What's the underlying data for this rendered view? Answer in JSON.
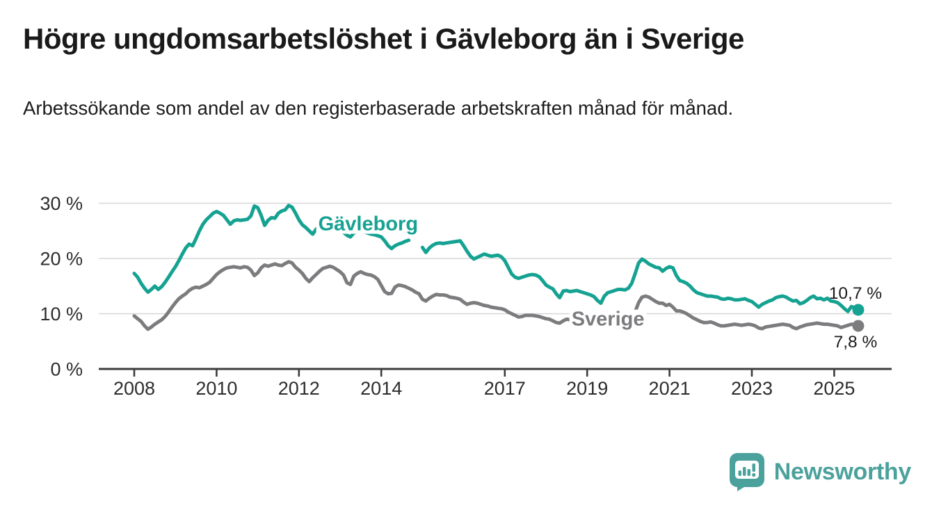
{
  "header": {
    "title": "Högre ungdomsarbetslöshet i Gävleborg än i Sverige",
    "subtitle": "Arbetssökande som andel av den registerbaserade arbetskraften månad för månad."
  },
  "footer": {
    "brand": "Newsworthy",
    "logo_icon": "newsworthy-speech-bubble-bar-chart-icon"
  },
  "chart_data": {
    "type": "line",
    "title": "",
    "xlabel": "",
    "ylabel": "",
    "x_axis": {
      "tick_years": [
        2008,
        2010,
        2012,
        2014,
        2017,
        2019,
        2021,
        2023,
        2025
      ],
      "tick_labels": [
        "2008",
        "2010",
        "2012",
        "2014",
        "2017",
        "2019",
        "2021",
        "2023",
        "2025"
      ],
      "range_years": [
        2007.85,
        2026.4
      ]
    },
    "y_axis": {
      "ticks": [
        0,
        10,
        20,
        30
      ],
      "tick_labels": [
        "0 %",
        "10 %",
        "20 %",
        "30 %"
      ],
      "range": [
        0,
        32.5
      ],
      "grid": true
    },
    "legend_position": "inline-labels",
    "frequency": "monthly",
    "start_year": 2008,
    "series": [
      {
        "name": "Gävleborg",
        "color": "#16a292",
        "end_label": "10,7 %",
        "end_value": 10.7,
        "label_anchor": {
          "x": 2012.47,
          "y": 25.1
        },
        "values": [
          17.3,
          16.6,
          15.5,
          14.6,
          13.9,
          14.4,
          15.0,
          14.4,
          14.9,
          15.7,
          16.6,
          17.6,
          18.5,
          19.6,
          20.8,
          21.9,
          22.6,
          22.3,
          23.6,
          25.0,
          26.2,
          27.0,
          27.6,
          28.2,
          28.5,
          28.2,
          27.8,
          27.0,
          26.2,
          26.8,
          27.0,
          26.9,
          27.0,
          27.1,
          27.7,
          29.5,
          29.2,
          27.8,
          26.0,
          26.9,
          27.4,
          27.3,
          28.2,
          28.6,
          28.8,
          29.6,
          29.3,
          28.2,
          27.0,
          26.1,
          25.6,
          25.0,
          24.4,
          25.3,
          25.9,
          25.7,
          25.5,
          25.6,
          25.4,
          25.2,
          25.0,
          24.7,
          24.2,
          23.9,
          24.6,
          24.9,
          25.0,
          24.8,
          24.6,
          24.4,
          24.3,
          24.1,
          23.9,
          23.2,
          22.3,
          21.8,
          22.3,
          22.6,
          22.8,
          23.1,
          23.3,
          null,
          null,
          null,
          22.0,
          21.1,
          21.9,
          22.4,
          22.7,
          22.8,
          22.7,
          22.8,
          22.9,
          23.0,
          23.1,
          23.2,
          22.3,
          21.3,
          20.4,
          19.9,
          20.2,
          20.5,
          20.8,
          20.6,
          20.4,
          20.5,
          20.6,
          20.3,
          19.6,
          18.4,
          17.2,
          16.6,
          16.4,
          16.6,
          16.8,
          17.0,
          17.1,
          17.0,
          16.7,
          16.0,
          15.2,
          14.8,
          14.5,
          13.6,
          12.9,
          14.1,
          14.2,
          14.0,
          14.1,
          14.2,
          14.0,
          13.8,
          13.6,
          13.4,
          13.1,
          12.4,
          11.9,
          13.2,
          13.8,
          14.0,
          14.2,
          14.4,
          14.4,
          14.3,
          14.6,
          15.5,
          17.3,
          19.2,
          19.9,
          19.5,
          19.0,
          18.7,
          18.4,
          18.3,
          17.7,
          18.2,
          18.5,
          18.3,
          16.9,
          16.0,
          15.8,
          15.5,
          15.0,
          14.3,
          13.8,
          13.6,
          13.4,
          13.2,
          13.2,
          13.1,
          13.0,
          12.7,
          12.6,
          12.8,
          12.7,
          12.5,
          12.5,
          12.6,
          12.7,
          12.4,
          12.2,
          11.7,
          11.2,
          11.7,
          12.0,
          12.3,
          12.5,
          12.9,
          13.1,
          13.2,
          13.0,
          12.6,
          12.3,
          12.4,
          11.8,
          12.0,
          12.4,
          12.9,
          13.2,
          12.7,
          12.8,
          12.5,
          12.8,
          12.3,
          12.2,
          12.0,
          11.5,
          10.9,
          10.4,
          11.3,
          11.1,
          10.7
        ]
      },
      {
        "name": "Sverige",
        "color": "#7c7c7f",
        "end_label": "7,8 %",
        "end_value": 7.8,
        "label_anchor": {
          "x": 2018.62,
          "y": 7.85
        },
        "values": [
          9.6,
          9.1,
          8.6,
          7.8,
          7.2,
          7.6,
          8.1,
          8.5,
          8.9,
          9.5,
          10.3,
          11.2,
          12.0,
          12.7,
          13.2,
          13.6,
          14.2,
          14.6,
          14.8,
          14.7,
          15.0,
          15.3,
          15.7,
          16.4,
          17.1,
          17.6,
          18.0,
          18.3,
          18.4,
          18.5,
          18.4,
          18.3,
          18.5,
          18.4,
          17.9,
          16.9,
          17.4,
          18.3,
          18.8,
          18.6,
          18.8,
          19.0,
          18.8,
          18.7,
          19.1,
          19.4,
          19.2,
          18.4,
          17.9,
          17.3,
          16.4,
          15.8,
          16.5,
          17.1,
          17.7,
          18.2,
          18.4,
          18.6,
          18.4,
          18.0,
          17.6,
          17.0,
          15.6,
          15.3,
          16.8,
          17.3,
          17.6,
          17.3,
          17.1,
          17.0,
          16.7,
          16.2,
          15.1,
          14.0,
          13.6,
          13.7,
          14.8,
          15.2,
          15.1,
          14.9,
          14.6,
          14.3,
          13.9,
          13.6,
          12.6,
          12.3,
          12.8,
          13.2,
          13.5,
          13.4,
          13.4,
          13.3,
          13.0,
          12.9,
          12.8,
          12.6,
          12.1,
          11.7,
          11.9,
          12.0,
          11.9,
          11.7,
          11.5,
          11.4,
          11.2,
          11.1,
          11.0,
          10.9,
          10.7,
          10.3,
          10.0,
          9.7,
          9.4,
          9.5,
          9.7,
          9.7,
          9.7,
          9.6,
          9.5,
          9.3,
          9.1,
          9.0,
          8.7,
          8.4,
          8.3,
          8.7,
          9.0,
          8.9,
          8.8,
          8.7,
          8.6,
          8.5,
          8.4,
          8.1,
          7.9,
          7.7,
          8.1,
          8.4,
          8.5,
          8.5,
          8.5,
          8.5,
          8.6,
          8.7,
          8.9,
          9.3,
          10.4,
          12.0,
          13.0,
          13.2,
          13.0,
          12.6,
          12.2,
          11.9,
          11.9,
          11.5,
          11.7,
          11.2,
          10.5,
          10.5,
          10.3,
          10.0,
          9.6,
          9.2,
          8.9,
          8.6,
          8.4,
          8.4,
          8.5,
          8.3,
          8.0,
          7.8,
          7.8,
          7.9,
          8.0,
          8.1,
          8.0,
          7.9,
          8.0,
          8.1,
          8.0,
          7.8,
          7.4,
          7.3,
          7.6,
          7.7,
          7.8,
          7.9,
          8.0,
          8.1,
          8.0,
          7.9,
          7.5,
          7.3,
          7.6,
          7.8,
          8.0,
          8.1,
          8.2,
          8.3,
          8.2,
          8.1,
          8.1,
          8.0,
          7.9,
          7.8,
          7.5,
          7.7,
          7.9,
          8.1,
          8.0,
          7.8
        ]
      }
    ]
  }
}
